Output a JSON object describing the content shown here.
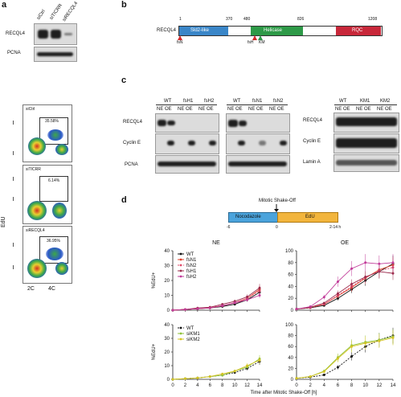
{
  "panel_labels": {
    "a": "a",
    "b": "b",
    "c": "c",
    "d": "d"
  },
  "panel_a": {
    "lanes": [
      "siCtrl",
      "siTICRR",
      "siRECQL4"
    ],
    "blot_rows": [
      "RECQL4",
      "PCNA"
    ],
    "flow_plots": [
      {
        "label": "siCtrl",
        "percent": "35.58%"
      },
      {
        "label": "siTICRR",
        "percent": "6.14%"
      },
      {
        "label": "siRECQL4",
        "percent": "36.95%"
      }
    ],
    "y_axis": "EdU",
    "x_ticks": [
      "2C",
      "4C"
    ]
  },
  "panel_b": {
    "protein": "RECQL4",
    "positions": [
      "1",
      "370",
      "480",
      "826",
      "1208"
    ],
    "domains": [
      {
        "name": "Sld2-like",
        "color": "#3a86c8"
      },
      {
        "name": "Helicase",
        "color": "#2e9a48"
      },
      {
        "name": "RQC",
        "color": "#c8283a"
      }
    ],
    "marks": [
      "fsN",
      "fsH",
      "KM"
    ]
  },
  "panel_c": {
    "groups_left": [
      "WT",
      "fsH1",
      "fsH2",
      "WT",
      "fsN1",
      "fsN2"
    ],
    "groups_right": [
      "WT",
      "KM1",
      "KM2"
    ],
    "fraction_ne": "NE",
    "fraction_oe": "OE",
    "rows_left": [
      "RECQL4",
      "Cyclin E",
      "PCNA"
    ],
    "rows_right": [
      "RECQL4",
      "Cyclin E",
      "Lamin A"
    ]
  },
  "panel_d_timeline": {
    "title": "Mitotic Shake-Off",
    "segments": [
      {
        "label": "Nocodazole",
        "color": "#4aa3dc"
      },
      {
        "label": "EdU",
        "color": "#f2b53c"
      }
    ],
    "ticks": [
      "-6",
      "0",
      "2-14 h"
    ]
  },
  "chart_data": [
    {
      "type": "line",
      "title": "NE",
      "ylabel": "%EdU+",
      "xlabel": "",
      "ylim": [
        0,
        40
      ],
      "x": [
        0,
        2,
        4,
        6,
        8,
        10,
        12,
        14
      ],
      "yticks": [
        0,
        10,
        20,
        30,
        40
      ],
      "xticks": [],
      "legend": "top-left",
      "series": [
        {
          "name": "WT",
          "color": "#111111",
          "dash": false,
          "values": [
            0,
            0.5,
            1,
            1.5,
            2.5,
            4,
            7,
            12
          ]
        },
        {
          "name": "fsN1",
          "color": "#e0402a",
          "dash": false,
          "values": [
            0,
            0.5,
            1,
            1.5,
            3,
            5,
            8,
            14
          ]
        },
        {
          "name": "fsN2",
          "color": "#e04a6a",
          "dash": true,
          "values": [
            0,
            0.5,
            1,
            2,
            3,
            5,
            8,
            13
          ]
        },
        {
          "name": "fsH1",
          "color": "#9c2c4e",
          "dash": false,
          "values": [
            0,
            0.5,
            1.5,
            2,
            4,
            6,
            9,
            15
          ]
        },
        {
          "name": "fsH2",
          "color": "#c23c9a",
          "dash": false,
          "values": [
            0,
            0.5,
            1,
            1.5,
            3,
            5,
            7,
            10
          ]
        }
      ]
    },
    {
      "type": "line",
      "title": "OE",
      "ylabel": "",
      "xlabel": "",
      "ylim": [
        0,
        100
      ],
      "x": [
        0,
        2,
        4,
        6,
        8,
        10,
        12,
        14
      ],
      "yticks": [
        0,
        20,
        40,
        60,
        80,
        100
      ],
      "xticks": [],
      "legend": "none",
      "series": [
        {
          "name": "WT",
          "color": "#111111",
          "dash": false,
          "values": [
            2,
            4,
            8,
            20,
            35,
            50,
            65,
            78
          ]
        },
        {
          "name": "fsN1",
          "color": "#e0402a",
          "dash": false,
          "values": [
            2,
            5,
            10,
            24,
            38,
            54,
            68,
            76
          ]
        },
        {
          "name": "fsN2",
          "color": "#e04a6a",
          "dash": true,
          "values": [
            2,
            4,
            10,
            25,
            40,
            55,
            66,
            72
          ]
        },
        {
          "name": "fsH1",
          "color": "#9c2c4e",
          "dash": false,
          "values": [
            2,
            5,
            12,
            28,
            44,
            56,
            65,
            62
          ]
        },
        {
          "name": "fsH2",
          "color": "#c23c9a",
          "dash": false,
          "values": [
            2,
            6,
            22,
            48,
            70,
            80,
            78,
            80
          ]
        }
      ]
    },
    {
      "type": "line",
      "title": "",
      "ylabel": "%EdU+",
      "xlabel": "Time after Mitotic Shake-Off [h]",
      "ylim": [
        0,
        40
      ],
      "x": [
        0,
        2,
        4,
        6,
        8,
        10,
        12,
        14
      ],
      "yticks": [
        0,
        10,
        20,
        30,
        40
      ],
      "xticks": [
        0,
        2,
        4,
        6,
        8,
        10,
        12,
        14
      ],
      "legend": "top-left",
      "series": [
        {
          "name": "WT",
          "color": "#111111",
          "dash": true,
          "values": [
            0,
            0.5,
            1,
            2,
            3,
            5,
            8,
            13
          ]
        },
        {
          "name": "siKM1",
          "color": "#8fc33a",
          "dash": false,
          "values": [
            0,
            0.5,
            1,
            2,
            3,
            6,
            9,
            15
          ]
        },
        {
          "name": "siKM2",
          "color": "#d6c424",
          "dash": false,
          "values": [
            0,
            0.5,
            1,
            2,
            4,
            6,
            10,
            14
          ]
        }
      ]
    },
    {
      "type": "line",
      "title": "",
      "ylabel": "",
      "xlabel": "",
      "ylim": [
        0,
        100
      ],
      "x": [
        0,
        2,
        4,
        6,
        8,
        10,
        12,
        14
      ],
      "yticks": [
        0,
        20,
        40,
        60,
        80,
        100
      ],
      "xticks": [
        0,
        2,
        4,
        6,
        8,
        10,
        12,
        14
      ],
      "legend": "none",
      "series": [
        {
          "name": "WT",
          "color": "#111111",
          "dash": true,
          "values": [
            2,
            4,
            8,
            22,
            42,
            60,
            72,
            80
          ]
        },
        {
          "name": "siKM1",
          "color": "#8fc33a",
          "dash": false,
          "values": [
            2,
            5,
            15,
            40,
            62,
            68,
            72,
            78
          ]
        },
        {
          "name": "siKM2",
          "color": "#d6c424",
          "dash": false,
          "values": [
            2,
            5,
            14,
            38,
            60,
            66,
            70,
            76
          ]
        }
      ]
    }
  ]
}
